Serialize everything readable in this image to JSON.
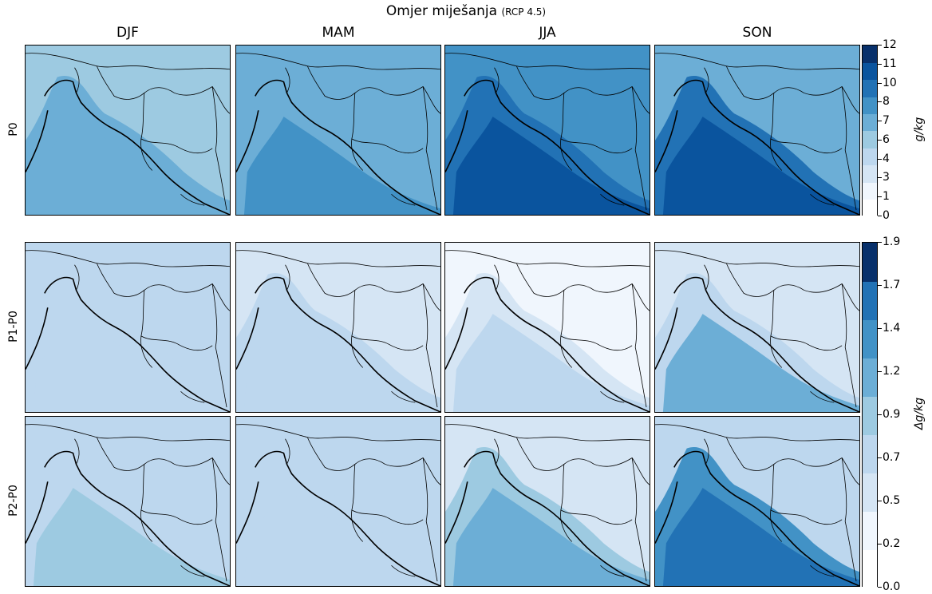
{
  "title": "Omjer miješanja",
  "subtitle": "(RCP 4.5)",
  "seasons": [
    "DJF",
    "MAM",
    "JJA",
    "SON"
  ],
  "rows": [
    "P0",
    "P1-P0",
    "P2-P0"
  ],
  "colorbars": {
    "absolute": {
      "unit": "g/kg",
      "ticks": [
        "0",
        "1",
        "3",
        "4",
        "6",
        "7",
        "8",
        "10",
        "11",
        "12"
      ],
      "colors": [
        "#ffffff",
        "#f0f6fd",
        "#d5e5f4",
        "#bdd7ee",
        "#9dcae1",
        "#6caed6",
        "#4292c6",
        "#2272b5",
        "#0a549e",
        "#08306b"
      ]
    },
    "difference": {
      "unit": "Δg/kg",
      "ticks": [
        "0.0",
        "0.2",
        "0.5",
        "0.7",
        "0.9",
        "1.2",
        "1.4",
        "1.7",
        "1.9"
      ],
      "colors": [
        "#ffffff",
        "#f0f6fd",
        "#d5e5f4",
        "#bdd7ee",
        "#9dcae1",
        "#6caed6",
        "#4292c6",
        "#2272b5",
        "#08306b"
      ]
    }
  },
  "chart_data": {
    "type": "heatmap",
    "title": "Omjer miješanja (RCP 4.5)",
    "columns": [
      "DJF",
      "MAM",
      "JJA",
      "SON"
    ],
    "rows": [
      "P0",
      "P1-P0",
      "P2-P0"
    ],
    "fields": [
      {
        "row": "P0",
        "unit": "g/kg",
        "season_levels": {
          "DJF": {
            "land": 4,
            "coast": 6,
            "sea": 6
          },
          "MAM": {
            "land": 6,
            "coast": 6,
            "sea": 7
          },
          "JJA": {
            "land": 7,
            "coast": 8,
            "sea": 10
          },
          "SON": {
            "land": 6,
            "coast": 8,
            "sea": 10
          }
        }
      },
      {
        "row": "P1-P0",
        "unit": "Δg/kg",
        "season_levels": {
          "DJF": {
            "land": 0.5,
            "coast": 0.5,
            "sea": 0.5
          },
          "MAM": {
            "land": 0.2,
            "coast": 0.5,
            "sea": 0.5
          },
          "JJA": {
            "land": 0.0,
            "coast": 0.2,
            "sea": 0.5
          },
          "SON": {
            "land": 0.2,
            "coast": 0.5,
            "sea": 0.9
          }
        }
      },
      {
        "row": "P2-P0",
        "unit": "Δg/kg",
        "season_levels": {
          "DJF": {
            "land": 0.5,
            "coast": 0.5,
            "sea": 0.7
          },
          "MAM": {
            "land": 0.5,
            "coast": 0.5,
            "sea": 0.5
          },
          "JJA": {
            "land": 0.2,
            "coast": 0.7,
            "sea": 0.9
          },
          "SON": {
            "land": 0.5,
            "coast": 1.2,
            "sea": 1.4
          }
        }
      }
    ]
  }
}
